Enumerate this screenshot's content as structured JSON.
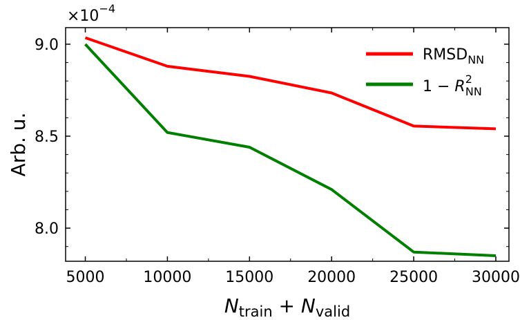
{
  "chart_data": {
    "type": "line",
    "x": [
      5000,
      10000,
      15000,
      20000,
      25000,
      30000
    ],
    "series": [
      {
        "name": "RMSD_NN",
        "color": "#ff0000",
        "values": [
          9.035,
          8.88,
          8.825,
          8.735,
          8.555,
          8.54
        ]
      },
      {
        "name": "1 − R²_NN",
        "color": "#007f00",
        "values": [
          9.0,
          8.52,
          8.44,
          8.21,
          7.87,
          7.85
        ]
      }
    ],
    "xlim": [
      3800,
      30800
    ],
    "ylim": [
      7.82,
      9.09
    ],
    "xticks": [
      "5000",
      "10000",
      "15000",
      "20000",
      "25000",
      "30000"
    ],
    "yticks": [
      "8.0",
      "8.5",
      "9.0"
    ],
    "ytick_values": [
      8.0,
      8.5,
      9.0
    ],
    "y_scale_factor": "×10",
    "y_scale_exponent": "−4",
    "ylabel": "Arb. u.",
    "xlabel": {
      "part1": "N",
      "sub1": "train",
      "op": " + ",
      "part2": "N",
      "sub2": "valid"
    },
    "legend": {
      "placement": "top-right",
      "entry1": {
        "text": "RMSD",
        "sub": "NN"
      },
      "entry2": {
        "text": "1 − ",
        "var": "R",
        "sup": "2",
        "sub": "NN"
      }
    },
    "grid": false
  }
}
